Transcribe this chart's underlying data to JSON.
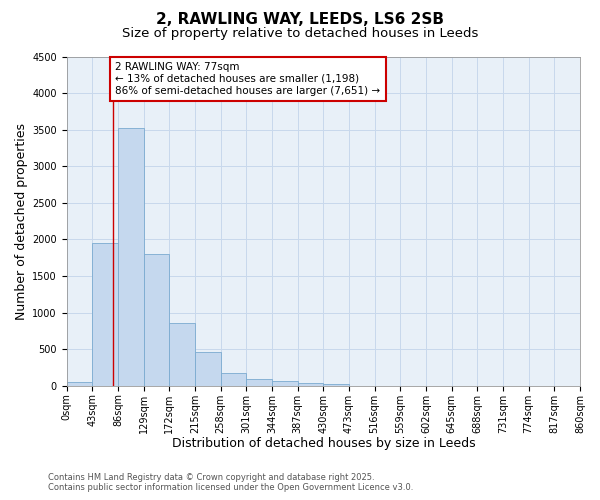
{
  "title": "2, RAWLING WAY, LEEDS, LS6 2SB",
  "subtitle": "Size of property relative to detached houses in Leeds",
  "xlabel": "Distribution of detached houses by size in Leeds",
  "ylabel": "Number of detached properties",
  "bar_color": "#c5d8ee",
  "bar_edge_color": "#7aaad0",
  "grid_color": "#c8d8ec",
  "background_color": "#e8f0f8",
  "bins": [
    "0sqm",
    "43sqm",
    "86sqm",
    "129sqm",
    "172sqm",
    "215sqm",
    "258sqm",
    "301sqm",
    "344sqm",
    "387sqm",
    "430sqm",
    "473sqm",
    "516sqm",
    "559sqm",
    "602sqm",
    "645sqm",
    "688sqm",
    "731sqm",
    "774sqm",
    "817sqm",
    "860sqm"
  ],
  "values": [
    50,
    1950,
    3520,
    1800,
    860,
    460,
    175,
    95,
    65,
    40,
    20,
    0,
    0,
    0,
    0,
    0,
    0,
    0,
    0,
    0
  ],
  "ylim": [
    0,
    4500
  ],
  "yticks": [
    0,
    500,
    1000,
    1500,
    2000,
    2500,
    3000,
    3500,
    4000,
    4500
  ],
  "property_label": "2 RAWLING WAY: 77sqm",
  "annotation_line1": "← 13% of detached houses are smaller (1,198)",
  "annotation_line2": "86% of semi-detached houses are larger (7,651) →",
  "annotation_box_color": "#ffffff",
  "annotation_box_edge": "#cc0000",
  "vline_color": "#cc0000",
  "footer_line1": "Contains HM Land Registry data © Crown copyright and database right 2025.",
  "footer_line2": "Contains public sector information licensed under the Open Government Licence v3.0.",
  "title_fontsize": 11,
  "subtitle_fontsize": 9.5,
  "axis_label_fontsize": 9,
  "tick_fontsize": 7,
  "annotation_fontsize": 7.5,
  "footer_fontsize": 6
}
